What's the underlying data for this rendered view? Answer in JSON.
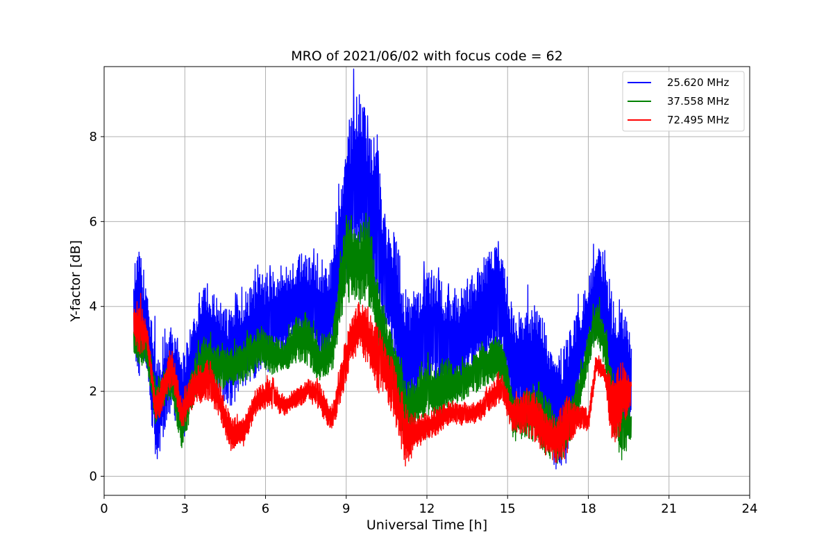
{
  "chart_data": {
    "type": "line",
    "title": "MRO of 2021/06/02 with focus code = 62",
    "xlabel": "Universal Time [h]",
    "ylabel": "Y-factor [dB]",
    "xlim": [
      0,
      24
    ],
    "ylim": [
      -0.45,
      9.65
    ],
    "xticks": [
      0,
      3,
      6,
      9,
      12,
      15,
      18,
      21,
      24
    ],
    "yticks": [
      0,
      2,
      4,
      6,
      8
    ],
    "grid": true,
    "legend_position": "top-right",
    "series": [
      {
        "name": "25.620 MHz",
        "color": "#0000ff",
        "x": [
          1.1,
          1.3,
          1.6,
          1.9,
          2.1,
          2.5,
          2.9,
          3.3,
          3.8,
          4.2,
          4.7,
          5.2,
          5.7,
          6.2,
          6.7,
          7.2,
          7.6,
          8.0,
          8.5,
          8.9,
          9.2,
          9.5,
          9.8,
          10.1,
          10.4,
          10.8,
          11.2,
          11.6,
          12.0,
          12.4,
          12.8,
          13.2,
          13.6,
          14.0,
          14.4,
          14.8,
          15.2,
          15.6,
          16.0,
          16.4,
          16.8,
          17.2,
          17.6,
          18.0,
          18.3,
          18.6,
          18.9,
          19.2,
          19.6
        ],
        "upper": [
          5.0,
          5.3,
          4.6,
          3.2,
          2.8,
          3.6,
          2.8,
          3.7,
          4.6,
          4.2,
          3.9,
          4.4,
          4.8,
          4.8,
          4.9,
          5.2,
          5.3,
          4.8,
          5.2,
          7.5,
          8.8,
          9.2,
          8.4,
          8.5,
          5.9,
          5.8,
          4.6,
          4.3,
          5.0,
          4.7,
          4.5,
          4.4,
          4.7,
          5.1,
          5.4,
          5.5,
          3.9,
          3.9,
          4.1,
          3.6,
          2.7,
          3.4,
          3.9,
          4.6,
          5.4,
          5.3,
          4.3,
          4.3,
          3.2
        ],
        "lower": [
          3.0,
          2.3,
          2.5,
          0.2,
          0.6,
          1.6,
          0.7,
          1.8,
          2.3,
          1.9,
          1.6,
          2.0,
          2.3,
          2.5,
          2.8,
          3.2,
          3.0,
          2.6,
          2.8,
          4.2,
          5.0,
          5.2,
          4.6,
          4.0,
          3.2,
          2.5,
          1.0,
          1.5,
          2.0,
          1.8,
          1.6,
          1.9,
          2.2,
          2.5,
          2.6,
          2.4,
          1.2,
          1.3,
          1.2,
          0.9,
          0.0,
          0.3,
          1.6,
          2.8,
          3.3,
          2.8,
          1.1,
          0.8,
          1.0
        ]
      },
      {
        "name": "37.558 MHz",
        "color": "#008000",
        "x": [
          1.1,
          1.3,
          1.6,
          1.9,
          2.1,
          2.5,
          2.9,
          3.3,
          3.8,
          4.2,
          4.7,
          5.2,
          5.7,
          6.2,
          6.7,
          7.2,
          7.6,
          8.0,
          8.5,
          8.9,
          9.2,
          9.5,
          9.8,
          10.1,
          10.4,
          10.8,
          11.2,
          11.6,
          12.0,
          12.4,
          12.8,
          13.2,
          13.6,
          14.0,
          14.4,
          14.8,
          15.2,
          15.6,
          16.0,
          16.4,
          16.8,
          17.2,
          17.6,
          18.0,
          18.3,
          18.6,
          18.9,
          19.2,
          19.6
        ],
        "upper": [
          3.6,
          3.7,
          3.3,
          2.4,
          2.3,
          2.8,
          1.5,
          2.8,
          3.3,
          3.1,
          3.0,
          3.2,
          3.5,
          3.4,
          3.2,
          3.8,
          3.9,
          3.1,
          3.5,
          5.8,
          6.2,
          5.9,
          6.5,
          4.9,
          3.9,
          3.2,
          2.3,
          2.3,
          2.7,
          2.6,
          2.8,
          2.6,
          2.8,
          3.0,
          3.3,
          3.3,
          1.9,
          2.0,
          2.2,
          1.9,
          1.4,
          1.7,
          2.3,
          3.4,
          4.2,
          3.7,
          2.5,
          1.9,
          1.6
        ],
        "lower": [
          2.9,
          2.6,
          2.6,
          1.2,
          1.5,
          1.8,
          0.6,
          1.6,
          2.2,
          2.0,
          2.1,
          2.2,
          2.5,
          2.4,
          2.4,
          2.7,
          2.6,
          2.2,
          2.5,
          3.8,
          4.2,
          4.0,
          4.1,
          3.3,
          2.5,
          1.8,
          0.7,
          1.1,
          1.4,
          1.3,
          1.5,
          1.7,
          1.9,
          2.0,
          2.2,
          2.2,
          0.8,
          0.9,
          0.8,
          0.5,
          0.2,
          0.5,
          1.2,
          2.5,
          3.1,
          2.6,
          0.9,
          0.3,
          0.8
        ]
      },
      {
        "name": "72.495 MHz",
        "color": "#ff0000",
        "x": [
          1.1,
          1.3,
          1.6,
          1.9,
          2.1,
          2.5,
          2.9,
          3.3,
          3.8,
          4.2,
          4.7,
          5.2,
          5.7,
          6.2,
          6.7,
          7.2,
          7.6,
          8.0,
          8.5,
          8.9,
          9.2,
          9.5,
          9.8,
          10.1,
          10.4,
          10.8,
          11.2,
          11.6,
          12.0,
          12.4,
          12.8,
          13.2,
          13.6,
          14.0,
          14.4,
          14.8,
          15.2,
          15.6,
          16.0,
          16.4,
          16.8,
          17.2,
          17.6,
          18.0,
          18.3,
          18.6,
          18.9,
          19.2,
          19.6
        ],
        "upper": [
          4.1,
          4.2,
          3.6,
          2.0,
          2.2,
          3.1,
          1.8,
          2.5,
          2.8,
          2.4,
          1.4,
          1.4,
          2.1,
          2.3,
          1.9,
          2.1,
          2.3,
          2.2,
          1.6,
          3.0,
          3.8,
          4.2,
          3.9,
          3.7,
          3.2,
          2.6,
          1.7,
          1.4,
          1.5,
          1.6,
          1.8,
          1.7,
          1.7,
          1.8,
          2.2,
          2.4,
          1.8,
          2.0,
          2.0,
          1.5,
          1.4,
          1.9,
          1.7,
          1.6,
          2.9,
          2.7,
          2.3,
          2.8,
          2.2
        ],
        "lower": [
          3.2,
          2.8,
          3.0,
          1.3,
          1.4,
          2.1,
          1.1,
          1.6,
          1.8,
          1.5,
          0.6,
          0.7,
          1.5,
          1.6,
          1.4,
          1.6,
          1.8,
          1.5,
          1.0,
          2.0,
          2.7,
          2.9,
          2.6,
          2.0,
          1.9,
          1.3,
          0.2,
          0.6,
          0.9,
          0.9,
          1.2,
          1.2,
          1.2,
          1.3,
          1.6,
          1.7,
          1.0,
          1.0,
          0.8,
          0.5,
          0.3,
          0.4,
          1.1,
          1.0,
          2.4,
          2.2,
          0.6,
          1.0,
          1.7
        ]
      }
    ]
  }
}
